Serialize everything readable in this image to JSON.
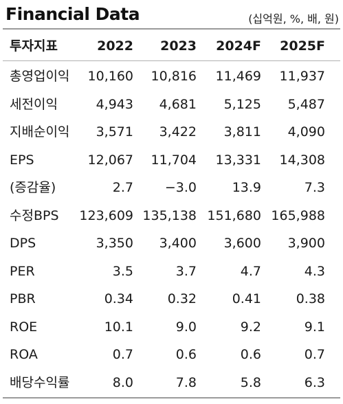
{
  "title": "Financial Data",
  "unit_note": "(십억원, %, 배, 원)",
  "columns": [
    "투자지표",
    "2022",
    "2023",
    "2024F",
    "2025F"
  ],
  "rows": [
    {
      "label": "총영업이익",
      "values": [
        "10,160",
        "10,816",
        "11,469",
        "11,937"
      ]
    },
    {
      "label": "세전이익",
      "values": [
        "4,943",
        "4,681",
        "5,125",
        "5,487"
      ]
    },
    {
      "label": "지배순이익",
      "values": [
        "3,571",
        "3,422",
        "3,811",
        "4,090"
      ]
    },
    {
      "label": "EPS",
      "values": [
        "12,067",
        "11,704",
        "13,331",
        "14,308"
      ]
    },
    {
      "label": "(증감율)",
      "values": [
        "2.7",
        "−3.0",
        "13.9",
        "7.3"
      ]
    },
    {
      "label": "수정BPS",
      "values": [
        "123,609",
        "135,138",
        "151,680",
        "165,988"
      ]
    },
    {
      "label": "DPS",
      "values": [
        "3,350",
        "3,400",
        "3,600",
        "3,900"
      ]
    },
    {
      "label": "PER",
      "values": [
        "3.5",
        "3.7",
        "4.7",
        "4.3"
      ]
    },
    {
      "label": "PBR",
      "values": [
        "0.34",
        "0.32",
        "0.41",
        "0.38"
      ]
    },
    {
      "label": "ROE",
      "values": [
        "10.1",
        "9.0",
        "9.2",
        "9.1"
      ]
    },
    {
      "label": "ROA",
      "values": [
        "0.7",
        "0.6",
        "0.6",
        "0.7"
      ]
    },
    {
      "label": "배당수익률",
      "values": [
        "8.0",
        "7.8",
        "5.8",
        "6.3"
      ]
    }
  ]
}
